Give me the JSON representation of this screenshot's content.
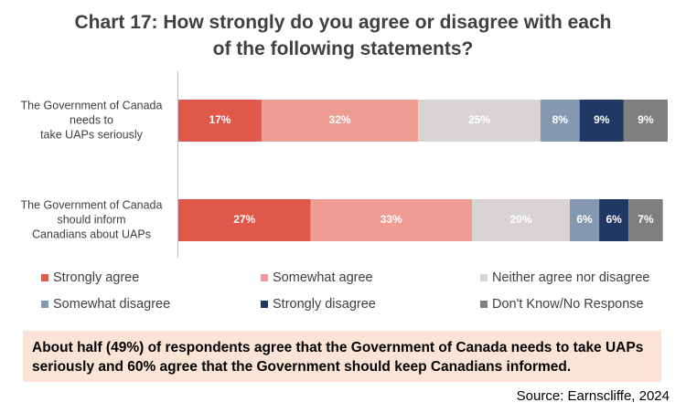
{
  "chart_data": {
    "type": "stacked_bar_horizontal",
    "title": "Chart 17: How strongly do you agree or disagree with each of the following statements?",
    "categories": [
      [
        "The Government of Canada",
        "needs to",
        "take UAPs seriously"
      ],
      [
        "The Government of Canada",
        "should inform",
        "Canadians about UAPs"
      ]
    ],
    "series": [
      {
        "name": "Strongly agree",
        "color": "#e0584a",
        "values": [
          17,
          27
        ],
        "value_labels": [
          "17%",
          "27%"
        ]
      },
      {
        "name": "Somewhat agree",
        "color": "#ef9c92",
        "values": [
          32,
          33
        ],
        "value_labels": [
          "32%",
          "33%"
        ]
      },
      {
        "name": "Neither agree nor disagree",
        "color": "#d8d4d4",
        "values": [
          25,
          20
        ],
        "value_labels": [
          "25%",
          "20%"
        ]
      },
      {
        "name": "Somewhat disagree",
        "color": "#8598b2",
        "values": [
          8,
          6
        ],
        "value_labels": [
          "8%",
          "6%"
        ]
      },
      {
        "name": "Strongly disagree",
        "color": "#1f3864",
        "values": [
          9,
          6
        ],
        "value_labels": [
          "9%",
          "6%"
        ]
      },
      {
        "name": "Don't Know/No Response",
        "color": "#7f7f7f",
        "values": [
          9,
          7
        ],
        "value_labels": [
          "9%",
          "7%"
        ]
      }
    ],
    "xlim": [
      0,
      100
    ],
    "annotation": "About half (49%) of respondents agree that the Government of Canada needs to take UAPs seriously and 60% agree that the Government should keep Canadians informed.",
    "source": "Source: Earnscliffe, 2024"
  }
}
